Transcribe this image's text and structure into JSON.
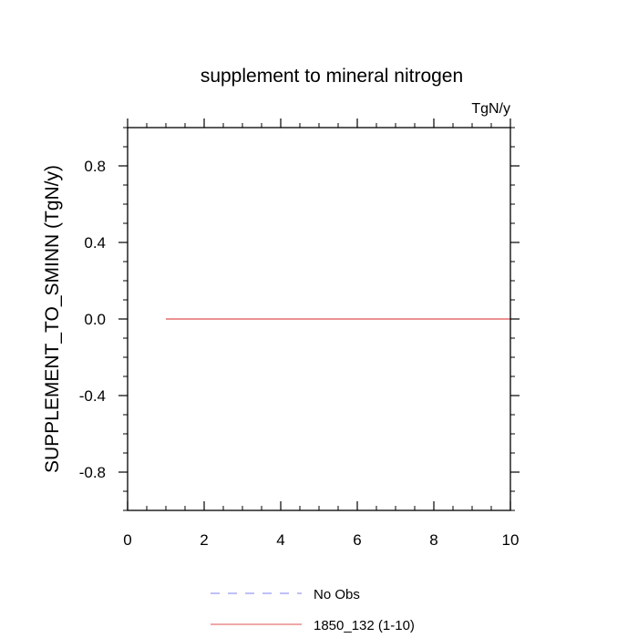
{
  "chart_data": {
    "type": "line",
    "title": "supplement to mineral nitrogen",
    "units": "TgN/y",
    "xlabel": "",
    "ylabel": "SUPPLEMENT_TO_SMINN  (TgN/y)",
    "xlim": [
      0,
      10
    ],
    "ylim": [
      -1,
      1
    ],
    "x_ticks": [
      0,
      2,
      4,
      6,
      8,
      10
    ],
    "x_tick_labels": [
      "0",
      "2",
      "4",
      "6",
      "8",
      "10"
    ],
    "y_ticks": [
      -0.8,
      -0.4,
      0.0,
      0.4,
      0.8
    ],
    "y_tick_labels": [
      "-0.8",
      "-0.4",
      "0.0",
      "0.4",
      "0.8"
    ],
    "x_minor_step": 0.5,
    "y_minor_step": 0.1,
    "series": [
      {
        "name": "1850_132 (1-10)",
        "color": "#e05050",
        "dash": "solid",
        "x": [
          1,
          2,
          3,
          4,
          5,
          6,
          7,
          8,
          9,
          10
        ],
        "y": [
          0,
          0,
          0,
          0,
          0,
          0,
          0,
          0,
          0,
          0
        ]
      }
    ],
    "legend": [
      {
        "label": "No Obs",
        "color": "#8080ee",
        "dash": "dashed"
      },
      {
        "label": "1850_132 (1-10)",
        "color": "#e05050",
        "dash": "solid"
      }
    ]
  }
}
